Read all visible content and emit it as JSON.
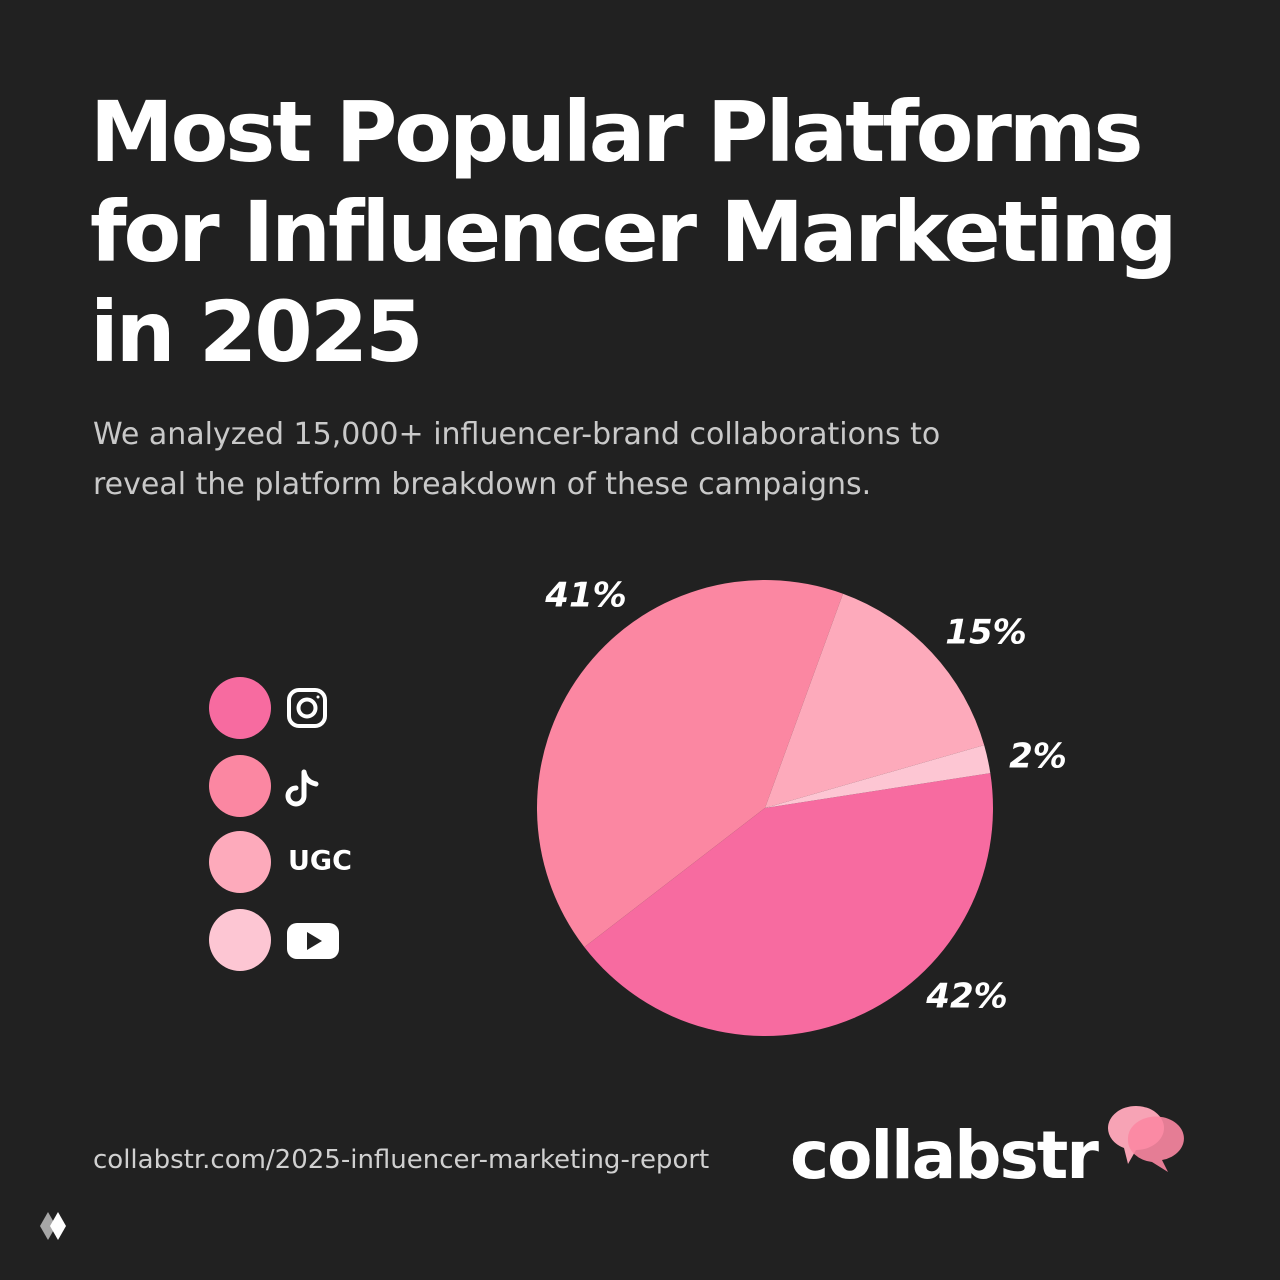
{
  "title": "Most Popular Platforms for Influencer Marketing in 2025",
  "subtitle": "We analyzed 15,000+ influencer-brand collaborations to reveal the platform breakdown of these campaigns.",
  "url": "collabstr.com/2025-influencer-marketing-report",
  "brand": "collabstr",
  "chart_data": {
    "type": "pie",
    "categories": [
      null,
      null,
      "UGC",
      null
    ],
    "values": [
      42,
      41,
      15,
      2
    ],
    "value_labels": [
      "42%",
      "41%",
      "15%",
      "2%"
    ],
    "colors": [
      "#f76ba0",
      "#fb87a2",
      "#fdaabb",
      "#fdc6d3"
    ]
  }
}
